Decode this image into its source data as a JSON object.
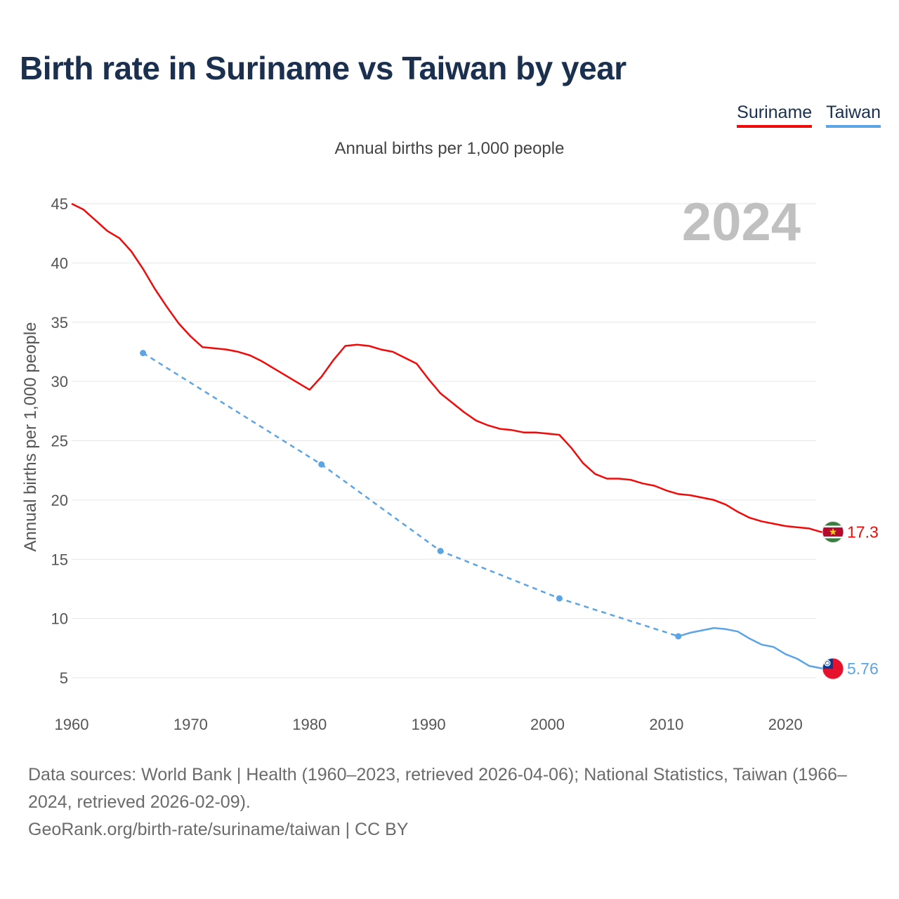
{
  "title": "Birth rate in Suriname vs Taiwan by year",
  "subtitle": "Annual births per 1,000 people",
  "legend": [
    {
      "name": "Suriname",
      "color": "#f00a0a"
    },
    {
      "name": "Taiwan",
      "color": "#5ba4e6"
    }
  ],
  "footer": {
    "sources": "Data sources: World Bank | Health (1960–2023, retrieved 2026-04-06); National Statistics, Taiwan (1966–2024, retrieved 2026-02-09).",
    "credit": "GeoRank.org/birth-rate/suriname/taiwan | CC BY"
  },
  "chart_data": {
    "type": "line",
    "title": "Birth rate in Suriname vs Taiwan by year",
    "ylabel": "Annual births per 1,000 people",
    "xlabel": "",
    "year_label": "2024",
    "xlim": [
      1960,
      2024
    ],
    "ylim": [
      5,
      45
    ],
    "x_ticks": [
      1960,
      1970,
      1980,
      1990,
      2000,
      2010,
      2020
    ],
    "y_ticks": [
      5,
      10,
      15,
      20,
      25,
      30,
      35,
      40,
      45
    ],
    "grid": true,
    "legend_position": "top-right",
    "series": [
      {
        "name": "Suriname",
        "color": "#f00a0a",
        "end_label": "17.3",
        "flag": "suriname-flag",
        "points": [
          [
            1960,
            45.0
          ],
          [
            1961,
            44.5
          ],
          [
            1962,
            43.6
          ],
          [
            1963,
            42.7
          ],
          [
            1964,
            42.1
          ],
          [
            1965,
            41.0
          ],
          [
            1966,
            39.5
          ],
          [
            1967,
            37.8
          ],
          [
            1968,
            36.3
          ],
          [
            1969,
            34.9
          ],
          [
            1970,
            33.8
          ],
          [
            1971,
            32.9
          ],
          [
            1972,
            32.8
          ],
          [
            1973,
            32.7
          ],
          [
            1974,
            32.5
          ],
          [
            1975,
            32.2
          ],
          [
            1976,
            31.7
          ],
          [
            1977,
            31.1
          ],
          [
            1978,
            30.5
          ],
          [
            1979,
            29.9
          ],
          [
            1980,
            29.3
          ],
          [
            1981,
            30.4
          ],
          [
            1982,
            31.8
          ],
          [
            1983,
            33.0
          ],
          [
            1984,
            33.1
          ],
          [
            1985,
            33.0
          ],
          [
            1986,
            32.7
          ],
          [
            1987,
            32.5
          ],
          [
            1988,
            32.0
          ],
          [
            1989,
            31.5
          ],
          [
            1990,
            30.2
          ],
          [
            1991,
            29.0
          ],
          [
            1992,
            28.2
          ],
          [
            1993,
            27.4
          ],
          [
            1994,
            26.7
          ],
          [
            1995,
            26.3
          ],
          [
            1996,
            26.0
          ],
          [
            1997,
            25.9
          ],
          [
            1998,
            25.7
          ],
          [
            1999,
            25.7
          ],
          [
            2000,
            25.6
          ],
          [
            2001,
            25.5
          ],
          [
            2002,
            24.4
          ],
          [
            2003,
            23.1
          ],
          [
            2004,
            22.2
          ],
          [
            2005,
            21.8
          ],
          [
            2006,
            21.8
          ],
          [
            2007,
            21.7
          ],
          [
            2008,
            21.4
          ],
          [
            2009,
            21.2
          ],
          [
            2010,
            20.8
          ],
          [
            2011,
            20.5
          ],
          [
            2012,
            20.4
          ],
          [
            2013,
            20.2
          ],
          [
            2014,
            20.0
          ],
          [
            2015,
            19.6
          ],
          [
            2016,
            19.0
          ],
          [
            2017,
            18.5
          ],
          [
            2018,
            18.2
          ],
          [
            2019,
            18.0
          ],
          [
            2020,
            17.8
          ],
          [
            2021,
            17.7
          ],
          [
            2022,
            17.6
          ],
          [
            2023,
            17.3
          ],
          [
            2024,
            17.3
          ]
        ]
      },
      {
        "name": "Taiwan",
        "color": "#5ba4e6",
        "end_label": "5.76",
        "flag": "taiwan-flag",
        "dashed_points": [
          [
            1966,
            32.4
          ],
          [
            1981,
            23.0
          ],
          [
            1991,
            15.7
          ],
          [
            2001,
            11.7
          ],
          [
            2011,
            8.5
          ]
        ],
        "points": [
          [
            2011,
            8.5
          ],
          [
            2012,
            8.8
          ],
          [
            2013,
            9.0
          ],
          [
            2014,
            9.2
          ],
          [
            2015,
            9.1
          ],
          [
            2016,
            8.9
          ],
          [
            2017,
            8.3
          ],
          [
            2018,
            7.8
          ],
          [
            2019,
            7.6
          ],
          [
            2020,
            7.0
          ],
          [
            2021,
            6.6
          ],
          [
            2022,
            6.0
          ],
          [
            2023,
            5.8
          ],
          [
            2024,
            5.76
          ]
        ]
      }
    ]
  }
}
